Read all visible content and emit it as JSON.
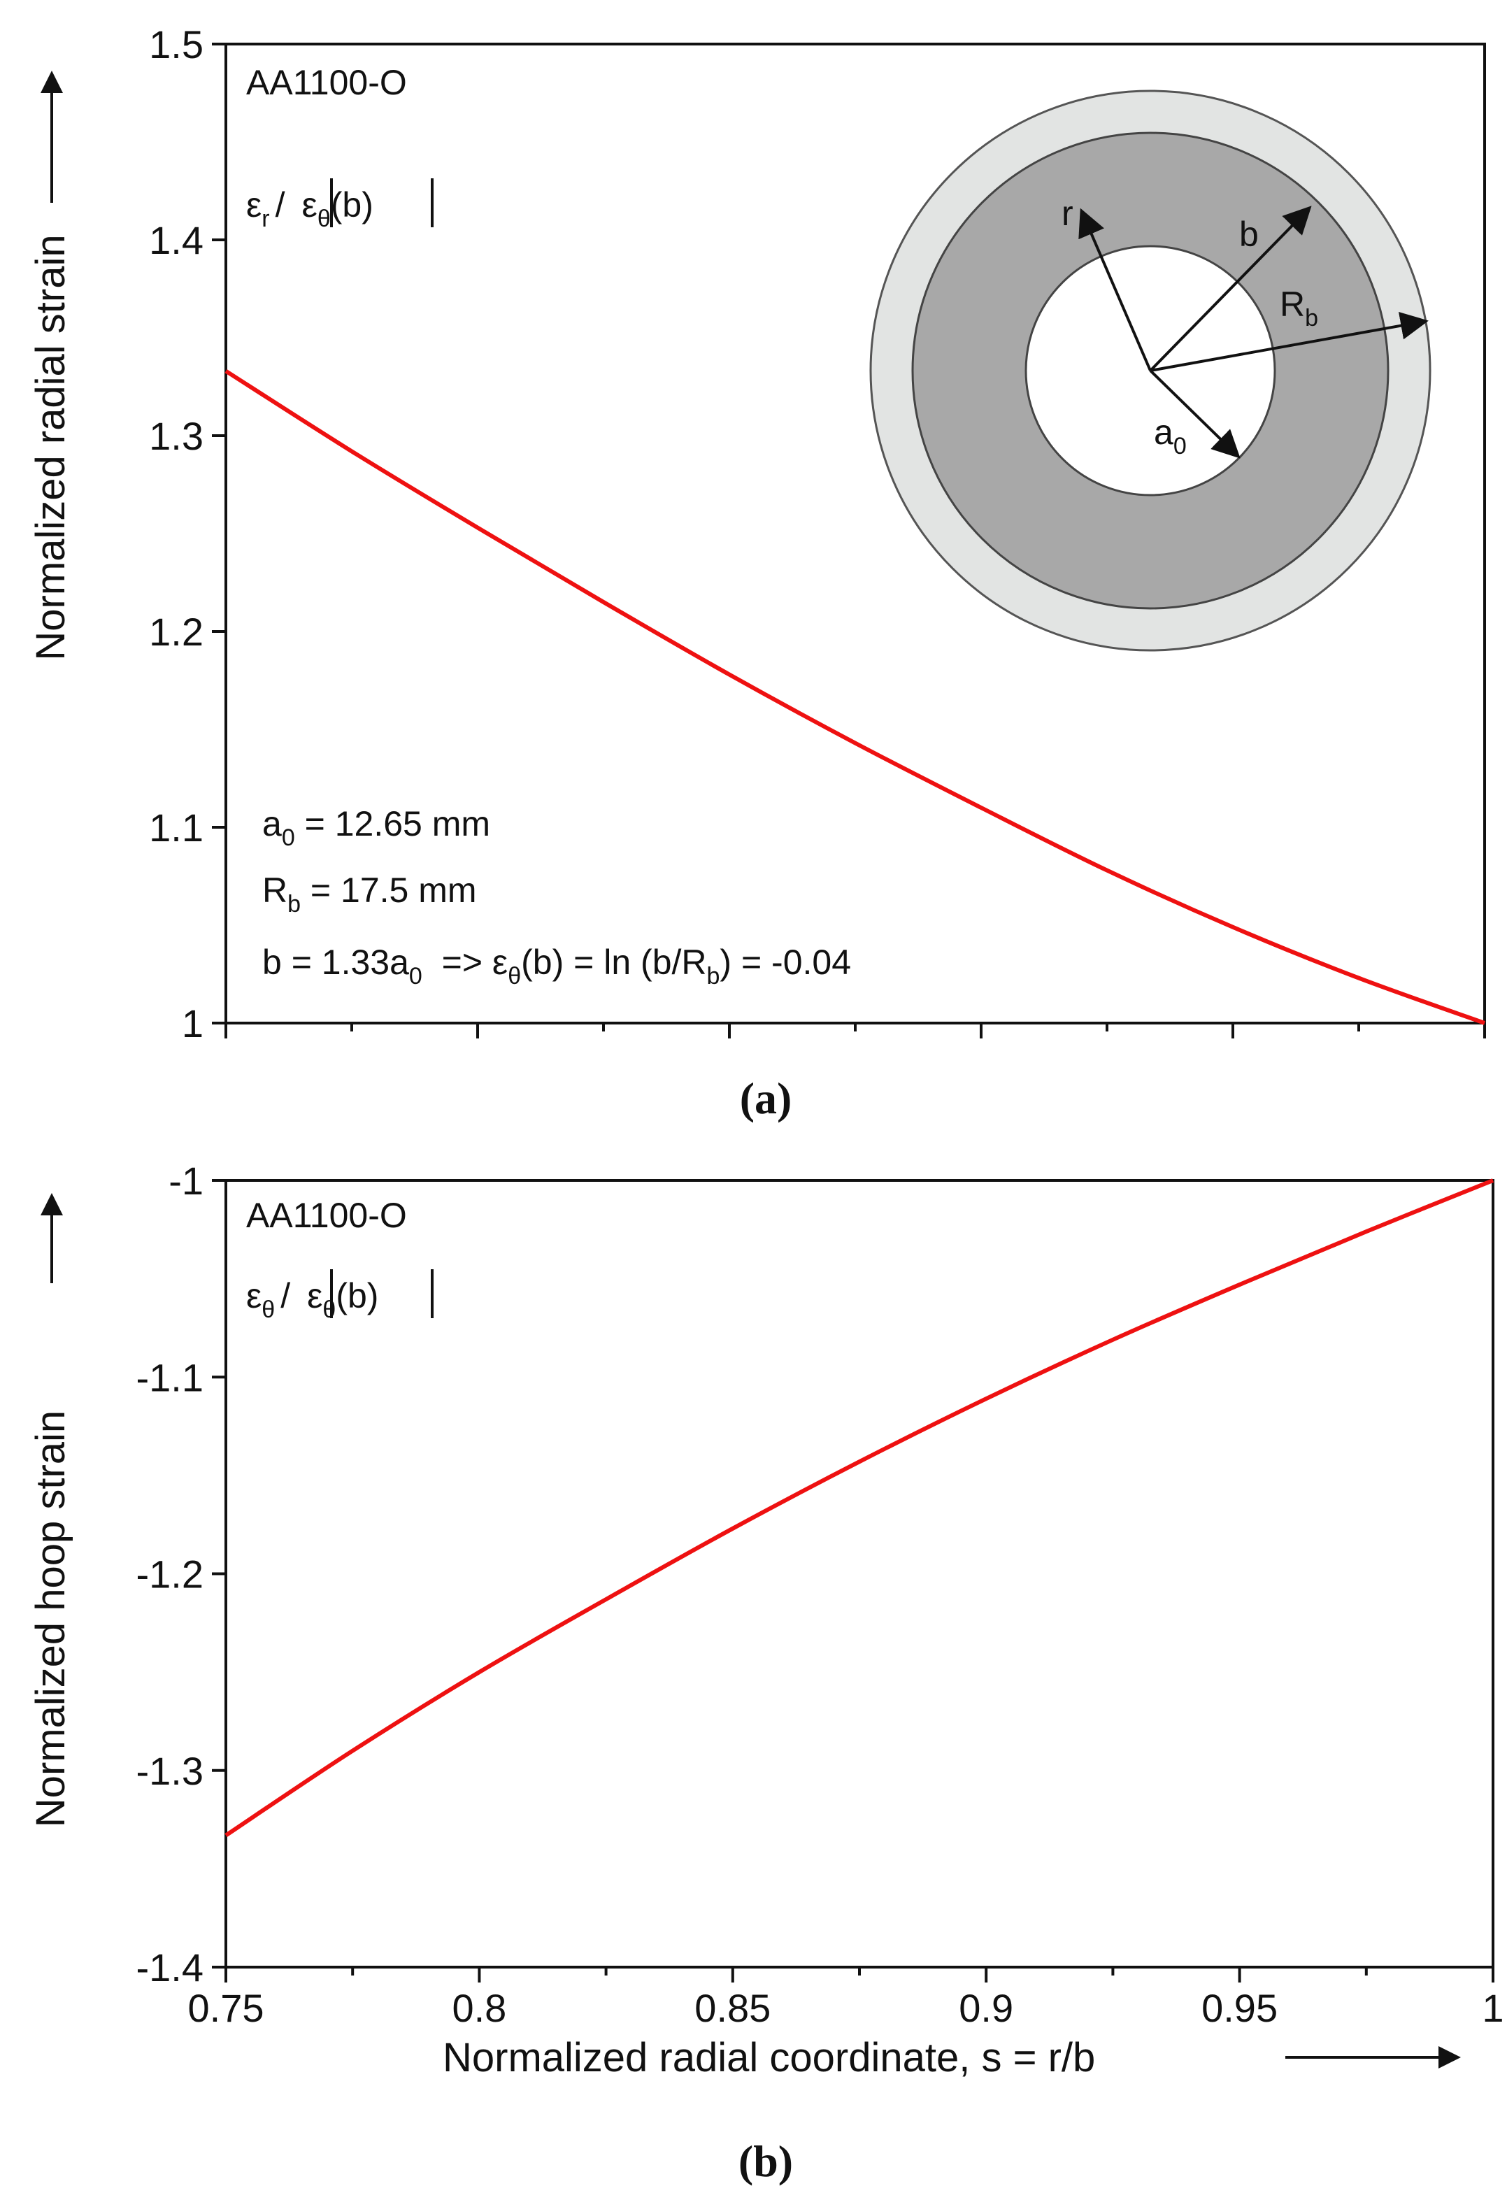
{
  "chart_data": [
    {
      "type": "line",
      "panel_label": "(a)",
      "material": "AA1100-O",
      "ylabel": "Normalized radial strain",
      "xlabel": "",
      "formula": {
        "eps": "ε",
        "sub_r": "r",
        "slash": "/",
        "sub_theta": "θ",
        "arg": "(b)"
      },
      "xlim": [
        0.75,
        1.0
      ],
      "ylim": [
        1.0,
        1.5
      ],
      "x_ticks": [
        0.75,
        0.8,
        0.85,
        0.9,
        0.95,
        1.0
      ],
      "y_ticks": [
        1.0,
        1.1,
        1.2,
        1.3,
        1.4,
        1.5
      ],
      "y_tick_labels": [
        "1",
        "1.1",
        "1.2",
        "1.3",
        "1.4",
        "1.5"
      ],
      "series": [
        {
          "color": "#ee1111",
          "x": [
            0.75,
            0.775,
            0.8,
            0.825,
            0.85,
            0.875,
            0.9,
            0.925,
            0.95,
            0.975,
            1.0
          ],
          "y": [
            1.333,
            1.292,
            1.253,
            1.215,
            1.178,
            1.143,
            1.11,
            1.078,
            1.049,
            1.023,
            1.0
          ]
        }
      ],
      "annotations": {
        "a0_sym": "a",
        "a0_sub": "0",
        "a0_val": " = 12.65 mm",
        "rb_sym": "R",
        "rb_sub": "b",
        "rb_val": " = 17.5 mm",
        "b_line_1": "b = 1.33a",
        "b_line_sub0": "0",
        "b_line_2": "  => ε",
        "b_line_subtheta": "θ",
        "b_line_3": "(b) = ln (b/R",
        "b_line_subb": "b",
        "b_line_4": ") = -0.04"
      },
      "inset": {
        "label_r": "r",
        "label_b": "b",
        "label_Rb": "R",
        "label_Rb_sub": "b",
        "label_a0": "a",
        "label_a0_sub": "0",
        "colors": {
          "outer": "#e2e4e3",
          "middle": "#a8a8a8",
          "inner": "#ffffff"
        }
      }
    },
    {
      "type": "line",
      "panel_label": "(b)",
      "material": "AA1100-O",
      "ylabel": "Normalized hoop strain",
      "xlabel": "Normalized radial coordinate, s = r/b",
      "formula": {
        "eps": "ε",
        "sub_theta": "θ",
        "slash": "/",
        "arg": "(b)"
      },
      "xlim": [
        0.75,
        1.0
      ],
      "ylim": [
        -1.4,
        -1.0
      ],
      "x_ticks": [
        0.75,
        0.8,
        0.85,
        0.9,
        0.95,
        1.0
      ],
      "x_tick_labels": [
        "0.75",
        "0.8",
        "0.85",
        "0.9",
        "0.95",
        "1"
      ],
      "y_ticks": [
        -1.4,
        -1.3,
        -1.2,
        -1.1,
        -1.0
      ],
      "y_tick_labels": [
        "-1.4",
        "-1.3",
        "-1.2",
        "-1.1",
        "-1"
      ],
      "series": [
        {
          "color": "#ee1111",
          "x": [
            0.75,
            0.775,
            0.8,
            0.825,
            0.85,
            0.875,
            0.9,
            0.925,
            0.95,
            0.975,
            1.0
          ],
          "y": [
            -1.333,
            -1.29,
            -1.25,
            -1.213,
            -1.177,
            -1.143,
            -1.111,
            -1.081,
            -1.053,
            -1.026,
            -1.0
          ]
        }
      ]
    }
  ]
}
